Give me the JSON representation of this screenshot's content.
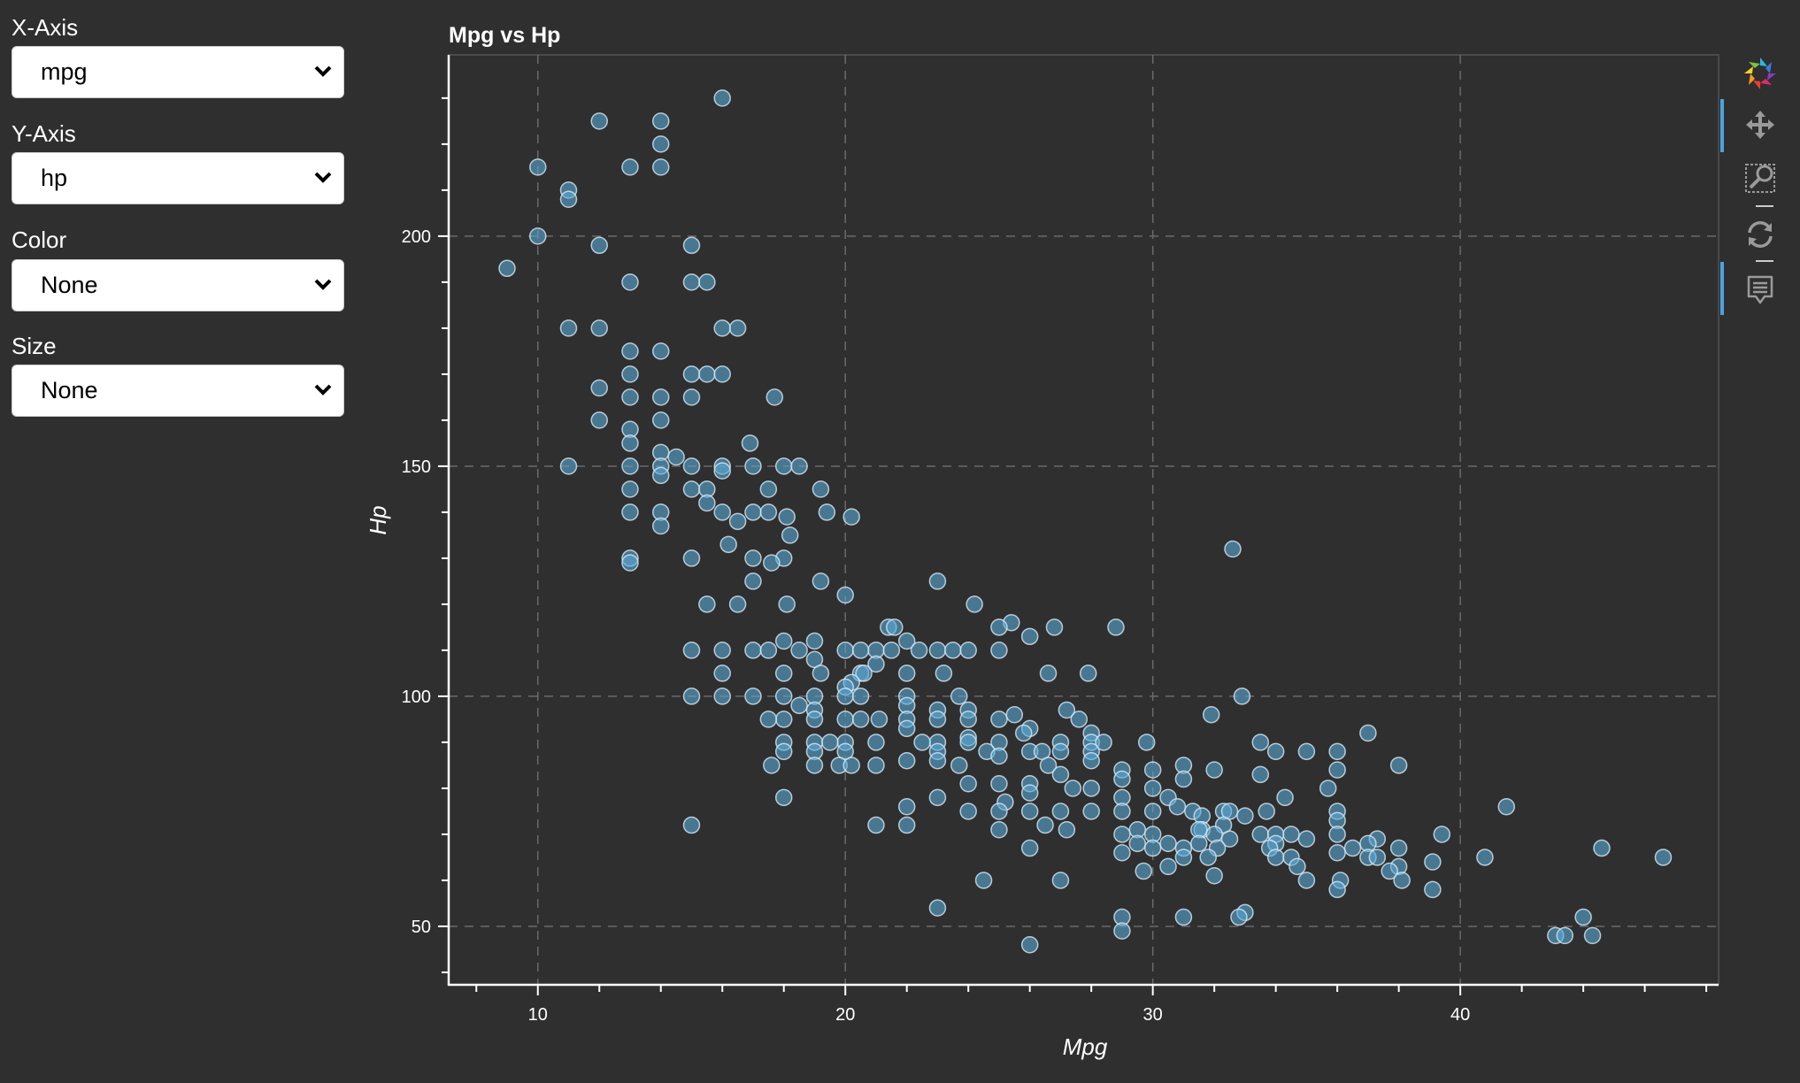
{
  "controls": [
    {
      "label": "X-Axis",
      "value": "mpg"
    },
    {
      "label": "Y-Axis",
      "value": "hp"
    },
    {
      "label": "Color",
      "value": "None"
    },
    {
      "label": "Size",
      "value": "None"
    }
  ],
  "toolbar": {
    "icons": [
      "bokeh-logo-icon",
      "pan-icon",
      "box-zoom-icon",
      "reset-icon",
      "hover-icon"
    ],
    "active_color": "#4aa3df"
  },
  "chart_data": {
    "type": "scatter",
    "title": "Mpg vs Hp",
    "xlabel": "Mpg",
    "ylabel": "Hp",
    "xlim": [
      7.1,
      48.4
    ],
    "ylim": [
      37.3,
      239.4
    ],
    "x_ticks": [
      10,
      20,
      30,
      40
    ],
    "y_ticks": [
      50,
      100,
      150,
      200
    ],
    "grid": true,
    "marker_color": "#5aa9d6",
    "points": [
      [
        16,
        230
      ],
      [
        12,
        225
      ],
      [
        14,
        225
      ],
      [
        14,
        220
      ],
      [
        10,
        215
      ],
      [
        13,
        215
      ],
      [
        14,
        215
      ],
      [
        11,
        210
      ],
      [
        11,
        208
      ],
      [
        10,
        200
      ],
      [
        12,
        198
      ],
      [
        15,
        198
      ],
      [
        9,
        193
      ],
      [
        13,
        190
      ],
      [
        15,
        190
      ],
      [
        15.5,
        190
      ],
      [
        11,
        180
      ],
      [
        12,
        180
      ],
      [
        16,
        180
      ],
      [
        16.5,
        180
      ],
      [
        13,
        175
      ],
      [
        14,
        175
      ],
      [
        13,
        170
      ],
      [
        15,
        170
      ],
      [
        15.5,
        170
      ],
      [
        16,
        170
      ],
      [
        12,
        167
      ],
      [
        13,
        165
      ],
      [
        14,
        165
      ],
      [
        15,
        165
      ],
      [
        17.7,
        165
      ],
      [
        12,
        160
      ],
      [
        14,
        160
      ],
      [
        13,
        158
      ],
      [
        13,
        155
      ],
      [
        16.9,
        155
      ],
      [
        14,
        153
      ],
      [
        14.5,
        152
      ],
      [
        11,
        150
      ],
      [
        13,
        150
      ],
      [
        14,
        150
      ],
      [
        15,
        150
      ],
      [
        16,
        150
      ],
      [
        17,
        150
      ],
      [
        18,
        150
      ],
      [
        18.5,
        150
      ],
      [
        14,
        148
      ],
      [
        16,
        149
      ],
      [
        13,
        145
      ],
      [
        15,
        145
      ],
      [
        15.5,
        145
      ],
      [
        17.5,
        145
      ],
      [
        19.2,
        145
      ],
      [
        15.5,
        142
      ],
      [
        13,
        140
      ],
      [
        14,
        140
      ],
      [
        16,
        140
      ],
      [
        17,
        140
      ],
      [
        17.5,
        140
      ],
      [
        19.4,
        140
      ],
      [
        20.2,
        139
      ],
      [
        18.1,
        139
      ],
      [
        16.5,
        138
      ],
      [
        14,
        137
      ],
      [
        18.2,
        135
      ],
      [
        16.2,
        133
      ],
      [
        13,
        130
      ],
      [
        13,
        129
      ],
      [
        15,
        130
      ],
      [
        17,
        130
      ],
      [
        18,
        130
      ],
      [
        17.6,
        129
      ],
      [
        32.6,
        132
      ],
      [
        17,
        125
      ],
      [
        19.2,
        125
      ],
      [
        23,
        125
      ],
      [
        20,
        122
      ],
      [
        15.5,
        120
      ],
      [
        16.5,
        120
      ],
      [
        18.1,
        120
      ],
      [
        24.2,
        120
      ],
      [
        25.4,
        116
      ],
      [
        21.4,
        115
      ],
      [
        21.6,
        115
      ],
      [
        25,
        115
      ],
      [
        26.8,
        115
      ],
      [
        28.8,
        115
      ],
      [
        26,
        113
      ],
      [
        18,
        112
      ],
      [
        19,
        112
      ],
      [
        22,
        112
      ],
      [
        15,
        110
      ],
      [
        16,
        110
      ],
      [
        17,
        110
      ],
      [
        17.5,
        110
      ],
      [
        18.5,
        110
      ],
      [
        20,
        110
      ],
      [
        21,
        110
      ],
      [
        21.5,
        110
      ],
      [
        23,
        110
      ],
      [
        23.5,
        110
      ],
      [
        24,
        110
      ],
      [
        25,
        110
      ],
      [
        20.5,
        110
      ],
      [
        22.4,
        110
      ],
      [
        19,
        108
      ],
      [
        21,
        107
      ],
      [
        16,
        105
      ],
      [
        18,
        105
      ],
      [
        19.2,
        105
      ],
      [
        20.5,
        105
      ],
      [
        20.6,
        105
      ],
      [
        22,
        105
      ],
      [
        23.2,
        105
      ],
      [
        26.6,
        105
      ],
      [
        27.9,
        105
      ],
      [
        20.2,
        103
      ],
      [
        20,
        102
      ],
      [
        15,
        100
      ],
      [
        16,
        100
      ],
      [
        17,
        100
      ],
      [
        18,
        100
      ],
      [
        19,
        100
      ],
      [
        20,
        100
      ],
      [
        20.5,
        100
      ],
      [
        22,
        100
      ],
      [
        23.7,
        100
      ],
      [
        32.9,
        100
      ],
      [
        18.5,
        98
      ],
      [
        22,
        98
      ],
      [
        19,
        97
      ],
      [
        23,
        97
      ],
      [
        24,
        97
      ],
      [
        27.2,
        97
      ],
      [
        18,
        95
      ],
      [
        17.5,
        95
      ],
      [
        19,
        95
      ],
      [
        20,
        95
      ],
      [
        20.5,
        95
      ],
      [
        21.1,
        95
      ],
      [
        22,
        95
      ],
      [
        23,
        95
      ],
      [
        24,
        95
      ],
      [
        25,
        95
      ],
      [
        25.5,
        96
      ],
      [
        27.6,
        95
      ],
      [
        31.9,
        96
      ],
      [
        22,
        93
      ],
      [
        26,
        93
      ],
      [
        25.8,
        92
      ],
      [
        28,
        92
      ],
      [
        37,
        92
      ],
      [
        24,
        91
      ],
      [
        18,
        90
      ],
      [
        19,
        90
      ],
      [
        20,
        90
      ],
      [
        21,
        90
      ],
      [
        23,
        90
      ],
      [
        24,
        90
      ],
      [
        25,
        90
      ],
      [
        27,
        90
      ],
      [
        28,
        90
      ],
      [
        28.4,
        90
      ],
      [
        29.8,
        90
      ],
      [
        33.5,
        90
      ],
      [
        19.5,
        90
      ],
      [
        22.5,
        90
      ],
      [
        24.6,
        88
      ],
      [
        18,
        88
      ],
      [
        19,
        88
      ],
      [
        20,
        88
      ],
      [
        23,
        88
      ],
      [
        25,
        87
      ],
      [
        26,
        88
      ],
      [
        26.4,
        88
      ],
      [
        27,
        88
      ],
      [
        28,
        88
      ],
      [
        34,
        88
      ],
      [
        35,
        88
      ],
      [
        36,
        88
      ],
      [
        22,
        86
      ],
      [
        23,
        86
      ],
      [
        28,
        86
      ],
      [
        17.6,
        85
      ],
      [
        19,
        85
      ],
      [
        19.8,
        85
      ],
      [
        20.2,
        85
      ],
      [
        21,
        85
      ],
      [
        23.7,
        85
      ],
      [
        26.6,
        85
      ],
      [
        31,
        85
      ],
      [
        32,
        84
      ],
      [
        38,
        85
      ],
      [
        29,
        84
      ],
      [
        30,
        84
      ],
      [
        33.5,
        83
      ],
      [
        36,
        84
      ],
      [
        27,
        83
      ],
      [
        26,
        81
      ],
      [
        24,
        81
      ],
      [
        25,
        81
      ],
      [
        29,
        82
      ],
      [
        31,
        82
      ],
      [
        27.4,
        80
      ],
      [
        28,
        80
      ],
      [
        30,
        80
      ],
      [
        35.7,
        80
      ],
      [
        26,
        79
      ],
      [
        18,
        78
      ],
      [
        23,
        78
      ],
      [
        29,
        78
      ],
      [
        30.5,
        78
      ],
      [
        34.3,
        78
      ],
      [
        25.2,
        77
      ],
      [
        22,
        76
      ],
      [
        30.8,
        76
      ],
      [
        41.5,
        76
      ],
      [
        24,
        75
      ],
      [
        25,
        75
      ],
      [
        26,
        75
      ],
      [
        27,
        75
      ],
      [
        28,
        75
      ],
      [
        29,
        75
      ],
      [
        30,
        75
      ],
      [
        31.3,
        75
      ],
      [
        32.3,
        75
      ],
      [
        32.5,
        75
      ],
      [
        33.7,
        75
      ],
      [
        36,
        75
      ],
      [
        31.6,
        74
      ],
      [
        33,
        74
      ],
      [
        36,
        73
      ],
      [
        15,
        72
      ],
      [
        21,
        72
      ],
      [
        22,
        72
      ],
      [
        26.5,
        72
      ],
      [
        31.6,
        71
      ],
      [
        32.3,
        72
      ],
      [
        25,
        71
      ],
      [
        27.2,
        71
      ],
      [
        29.5,
        71
      ],
      [
        31.5,
        71
      ],
      [
        29,
        70
      ],
      [
        30,
        70
      ],
      [
        32,
        70
      ],
      [
        33.5,
        70
      ],
      [
        34,
        70
      ],
      [
        34.5,
        70
      ],
      [
        35,
        69
      ],
      [
        36,
        70
      ],
      [
        37.3,
        69
      ],
      [
        39.4,
        70
      ],
      [
        30.5,
        68
      ],
      [
        31.5,
        68
      ],
      [
        32.5,
        69
      ],
      [
        34,
        68
      ],
      [
        37,
        68
      ],
      [
        29.5,
        68
      ],
      [
        26,
        67
      ],
      [
        30,
        67
      ],
      [
        31,
        67
      ],
      [
        32.1,
        67
      ],
      [
        33.8,
        67
      ],
      [
        36.5,
        67
      ],
      [
        38,
        67
      ],
      [
        44.6,
        67
      ],
      [
        29,
        66
      ],
      [
        36,
        66
      ],
      [
        37,
        65
      ],
      [
        37.3,
        65
      ],
      [
        31,
        65
      ],
      [
        31.8,
        65
      ],
      [
        34,
        65
      ],
      [
        34.5,
        65
      ],
      [
        40.8,
        65
      ],
      [
        46.6,
        65
      ],
      [
        39.1,
        64
      ],
      [
        30.5,
        63
      ],
      [
        38,
        63
      ],
      [
        34.7,
        63
      ],
      [
        37.7,
        62
      ],
      [
        29.7,
        62
      ],
      [
        32,
        61
      ],
      [
        24.5,
        60
      ],
      [
        27,
        60
      ],
      [
        35,
        60
      ],
      [
        36.1,
        60
      ],
      [
        38.1,
        60
      ],
      [
        36,
        58
      ],
      [
        39.1,
        58
      ],
      [
        23,
        54
      ],
      [
        33,
        53
      ],
      [
        32.8,
        52
      ],
      [
        29,
        52
      ],
      [
        31,
        52
      ],
      [
        44,
        52
      ],
      [
        29,
        49
      ],
      [
        43.1,
        48
      ],
      [
        43.4,
        48
      ],
      [
        44.3,
        48
      ],
      [
        26,
        46
      ]
    ]
  }
}
